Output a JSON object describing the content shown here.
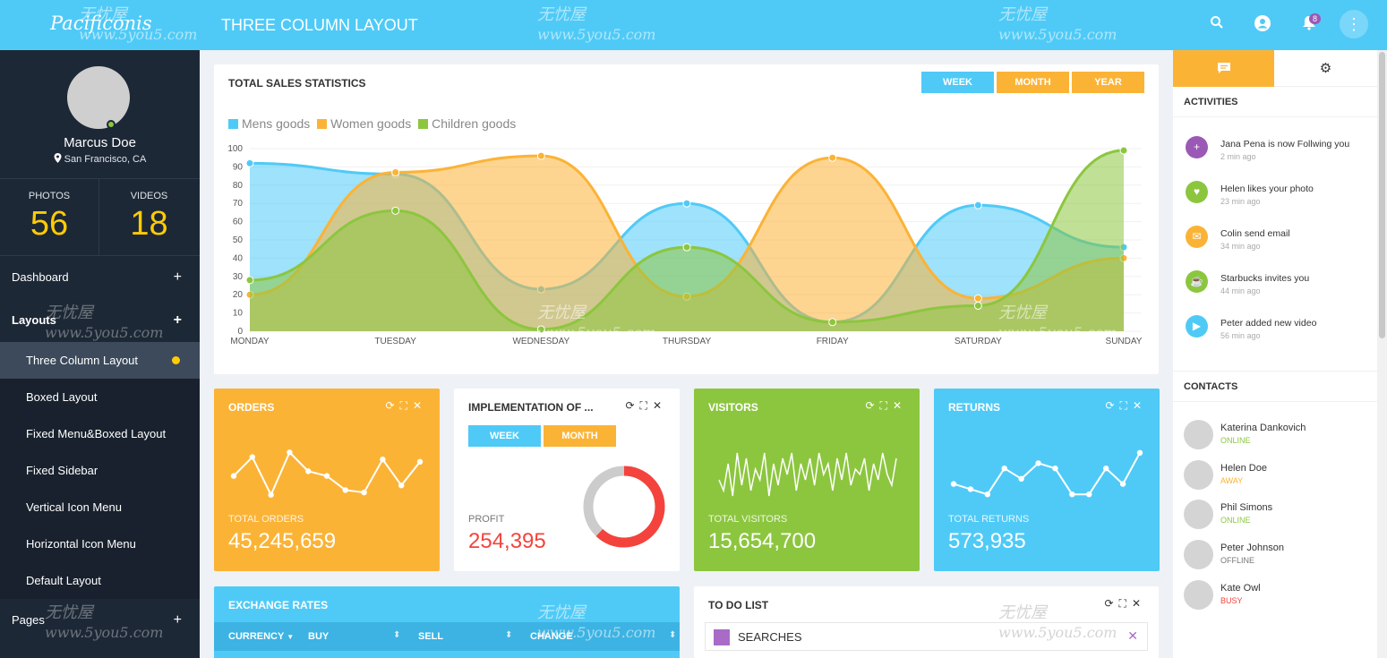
{
  "header": {
    "brand": "Pacificonis",
    "page_title": "THREE COLUMN LAYOUT",
    "notification_count": "8"
  },
  "watermark": {
    "cn": "无忧屋",
    "site": "www.5you5.com"
  },
  "profile": {
    "name": "Marcus Doe",
    "location": "San Francisco, CA"
  },
  "stats": [
    {
      "label": "PHOTOS",
      "value": "56"
    },
    {
      "label": "VIDEOS",
      "value": "18"
    }
  ],
  "menu": {
    "dashboard": "Dashboard",
    "layouts": "Layouts",
    "layout_items": [
      "Three Column Layout",
      "Boxed Layout",
      "Fixed Menu&Boxed Layout",
      "Fixed Sidebar",
      "Vertical Icon Menu",
      "Horizontal Icon Menu",
      "Default Layout"
    ],
    "pages": "Pages"
  },
  "sales": {
    "title": "TOTAL SALES STATISTICS",
    "buttons": [
      "WEEK",
      "MONTH",
      "YEAR"
    ]
  },
  "chart_data": {
    "type": "area",
    "x": [
      "MONDAY",
      "TUESDAY",
      "WEDNESDAY",
      "THURSDAY",
      "FRIDAY",
      "SATURDAY",
      "SUNDAY"
    ],
    "yticks": [
      "0",
      "10",
      "20",
      "30",
      "40",
      "50",
      "60",
      "70",
      "80",
      "90",
      "100"
    ],
    "ylim": [
      0,
      100
    ],
    "legend_position": "top-left",
    "series": [
      {
        "name": "Mens goods",
        "color": "#4fcaf7",
        "values": [
          92,
          86,
          23,
          70,
          5,
          69,
          46
        ]
      },
      {
        "name": "Women goods",
        "color": "#fbb336",
        "values": [
          20,
          87,
          96,
          19,
          95,
          18,
          40
        ]
      },
      {
        "name": "Children goods",
        "color": "#8cc63f",
        "values": [
          28,
          66,
          1,
          46,
          5,
          14,
          99
        ]
      }
    ]
  },
  "orders": {
    "title": "ORDERS",
    "label": "TOTAL ORDERS",
    "value": "45,245,659",
    "spark": [
      5,
      9,
      1,
      10,
      6,
      5,
      2,
      1.5,
      8.5,
      3,
      8
    ]
  },
  "implementation": {
    "title": "IMPLEMENTATION OF ...",
    "buttons": [
      "WEEK",
      "MONTH"
    ],
    "label": "PROFIT",
    "value": "254,395",
    "donut_fraction": 0.62,
    "donut_color": "#f4433c"
  },
  "visitors": {
    "title": "VISITORS",
    "label": "TOTAL VISITORS",
    "value": "15,654,700",
    "spark": [
      4,
      2,
      7,
      1,
      9,
      3,
      8,
      2,
      6,
      4,
      9,
      1,
      7,
      3,
      8,
      5,
      9,
      2,
      7,
      4,
      8,
      3,
      9,
      5,
      7,
      2,
      8,
      4,
      9,
      3,
      6,
      5,
      8,
      2,
      7,
      4,
      9,
      5,
      3,
      8
    ]
  },
  "returns": {
    "title": "RETURNS",
    "label": "TOTAL RETURNS",
    "value": "573,935",
    "spark": [
      3,
      2,
      1,
      6,
      4,
      7,
      6,
      1,
      1,
      6,
      3,
      9
    ]
  },
  "exchange": {
    "title": "EXCHANGE RATES",
    "columns": [
      "CURRENCY",
      "BUY",
      "SELL",
      "CHANGE"
    ]
  },
  "todo": {
    "title": "TO DO LIST",
    "items": [
      "SEARCHES"
    ]
  },
  "right": {
    "activities_title": "ACTIVITIES",
    "activities": [
      {
        "text": "Jana Pena is now Follwing you",
        "time": "2 min ago",
        "color": "#9b59b6",
        "icon": "+"
      },
      {
        "text": "Helen likes your photo",
        "time": "23 min ago",
        "color": "#8cc63f",
        "icon": "♥"
      },
      {
        "text": "Colin send email",
        "time": "34 min ago",
        "color": "#fbb336",
        "icon": "✉"
      },
      {
        "text": "Starbucks invites you",
        "time": "44 min ago",
        "color": "#8cc63f",
        "icon": "☕"
      },
      {
        "text": "Peter added new video",
        "time": "56 min ago",
        "color": "#4fcaf7",
        "icon": "▶"
      }
    ],
    "contacts_title": "CONTACTS",
    "contacts": [
      {
        "name": "Katerina Dankovich",
        "status": "ONLINE",
        "color": "#8cc63f"
      },
      {
        "name": "Helen Doe",
        "status": "AWAY",
        "color": "#fbb336"
      },
      {
        "name": "Phil Simons",
        "status": "ONLINE",
        "color": "#8cc63f"
      },
      {
        "name": "Peter Johnson",
        "status": "OFFLINE",
        "color": "#777777"
      },
      {
        "name": "Kate Owl",
        "status": "BUSY",
        "color": "#f4433c"
      }
    ]
  }
}
